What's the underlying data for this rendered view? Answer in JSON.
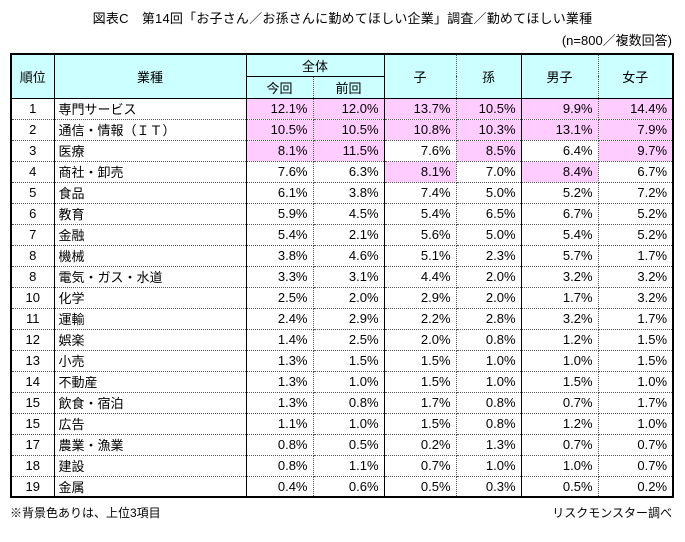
{
  "page": {
    "title": "図表C　第14回「お子さん／お孫さんに勤めてほしい企業」調査／勤めてほしい業種",
    "subtitle": "(n=800／複数回答)",
    "footnote": "※背景色ありは、上位3項目",
    "source": "リスクモンスター調べ"
  },
  "colors": {
    "header_bg": "#CCFFFF",
    "highlight_bg": "#FFCCFF",
    "border": "#000000"
  },
  "table": {
    "columns": {
      "rank": "順位",
      "industry": "業種",
      "overall": "全体",
      "current": "今回",
      "previous": "前回",
      "child": "子",
      "grandchild": "孫",
      "boy": "男子",
      "girl": "女子"
    },
    "rows": [
      {
        "rank": "1",
        "industry": "専門サービス",
        "values": [
          "12.1%",
          "12.0%",
          "13.7%",
          "10.5%",
          "9.9%",
          "14.4%"
        ],
        "highlights": [
          true,
          true,
          true,
          true,
          true,
          true
        ]
      },
      {
        "rank": "2",
        "industry": "通信・情報（ＩＴ）",
        "values": [
          "10.5%",
          "10.5%",
          "10.8%",
          "10.3%",
          "13.1%",
          "7.9%"
        ],
        "highlights": [
          true,
          true,
          true,
          true,
          true,
          true
        ]
      },
      {
        "rank": "3",
        "industry": "医療",
        "values": [
          "8.1%",
          "11.5%",
          "7.6%",
          "8.5%",
          "6.4%",
          "9.7%"
        ],
        "highlights": [
          true,
          true,
          false,
          true,
          false,
          true
        ]
      },
      {
        "rank": "4",
        "industry": "商社・卸売",
        "values": [
          "7.6%",
          "6.3%",
          "8.1%",
          "7.0%",
          "8.4%",
          "6.7%"
        ],
        "highlights": [
          false,
          false,
          true,
          false,
          true,
          false
        ]
      },
      {
        "rank": "5",
        "industry": "食品",
        "values": [
          "6.1%",
          "3.8%",
          "7.4%",
          "5.0%",
          "5.2%",
          "7.2%"
        ],
        "highlights": [
          false,
          false,
          false,
          false,
          false,
          false
        ]
      },
      {
        "rank": "6",
        "industry": "教育",
        "values": [
          "5.9%",
          "4.5%",
          "5.4%",
          "6.5%",
          "6.7%",
          "5.2%"
        ],
        "highlights": [
          false,
          false,
          false,
          false,
          false,
          false
        ]
      },
      {
        "rank": "7",
        "industry": "金融",
        "values": [
          "5.4%",
          "2.1%",
          "5.6%",
          "5.0%",
          "5.4%",
          "5.2%"
        ],
        "highlights": [
          false,
          false,
          false,
          false,
          false,
          false
        ]
      },
      {
        "rank": "8",
        "industry": "機械",
        "values": [
          "3.8%",
          "4.6%",
          "5.1%",
          "2.3%",
          "5.7%",
          "1.7%"
        ],
        "highlights": [
          false,
          false,
          false,
          false,
          false,
          false
        ]
      },
      {
        "rank": "8",
        "industry": "電気・ガス・水道",
        "values": [
          "3.3%",
          "3.1%",
          "4.4%",
          "2.0%",
          "3.2%",
          "3.2%"
        ],
        "highlights": [
          false,
          false,
          false,
          false,
          false,
          false
        ]
      },
      {
        "rank": "10",
        "industry": "化学",
        "values": [
          "2.5%",
          "2.0%",
          "2.9%",
          "2.0%",
          "1.7%",
          "3.2%"
        ],
        "highlights": [
          false,
          false,
          false,
          false,
          false,
          false
        ]
      },
      {
        "rank": "11",
        "industry": "運輸",
        "values": [
          "2.4%",
          "2.9%",
          "2.2%",
          "2.8%",
          "3.2%",
          "1.7%"
        ],
        "highlights": [
          false,
          false,
          false,
          false,
          false,
          false
        ]
      },
      {
        "rank": "12",
        "industry": "娯楽",
        "values": [
          "1.4%",
          "2.5%",
          "2.0%",
          "0.8%",
          "1.2%",
          "1.5%"
        ],
        "highlights": [
          false,
          false,
          false,
          false,
          false,
          false
        ]
      },
      {
        "rank": "13",
        "industry": "小売",
        "values": [
          "1.3%",
          "1.5%",
          "1.5%",
          "1.0%",
          "1.0%",
          "1.5%"
        ],
        "highlights": [
          false,
          false,
          false,
          false,
          false,
          false
        ]
      },
      {
        "rank": "14",
        "industry": "不動産",
        "values": [
          "1.3%",
          "1.0%",
          "1.5%",
          "1.0%",
          "1.5%",
          "1.0%"
        ],
        "highlights": [
          false,
          false,
          false,
          false,
          false,
          false
        ]
      },
      {
        "rank": "15",
        "industry": "飲食・宿泊",
        "values": [
          "1.3%",
          "0.8%",
          "1.7%",
          "0.8%",
          "0.7%",
          "1.7%"
        ],
        "highlights": [
          false,
          false,
          false,
          false,
          false,
          false
        ]
      },
      {
        "rank": "15",
        "industry": "広告",
        "values": [
          "1.1%",
          "1.0%",
          "1.5%",
          "0.8%",
          "1.2%",
          "1.0%"
        ],
        "highlights": [
          false,
          false,
          false,
          false,
          false,
          false
        ]
      },
      {
        "rank": "17",
        "industry": "農業・漁業",
        "values": [
          "0.8%",
          "0.5%",
          "0.2%",
          "1.3%",
          "0.7%",
          "0.7%"
        ],
        "highlights": [
          false,
          false,
          false,
          false,
          false,
          false
        ]
      },
      {
        "rank": "18",
        "industry": "建設",
        "values": [
          "0.8%",
          "1.1%",
          "0.7%",
          "1.0%",
          "1.0%",
          "0.7%"
        ],
        "highlights": [
          false,
          false,
          false,
          false,
          false,
          false
        ]
      },
      {
        "rank": "19",
        "industry": "金属",
        "values": [
          "0.4%",
          "0.6%",
          "0.5%",
          "0.3%",
          "0.5%",
          "0.2%"
        ],
        "highlights": [
          false,
          false,
          false,
          false,
          false,
          false
        ]
      }
    ]
  }
}
